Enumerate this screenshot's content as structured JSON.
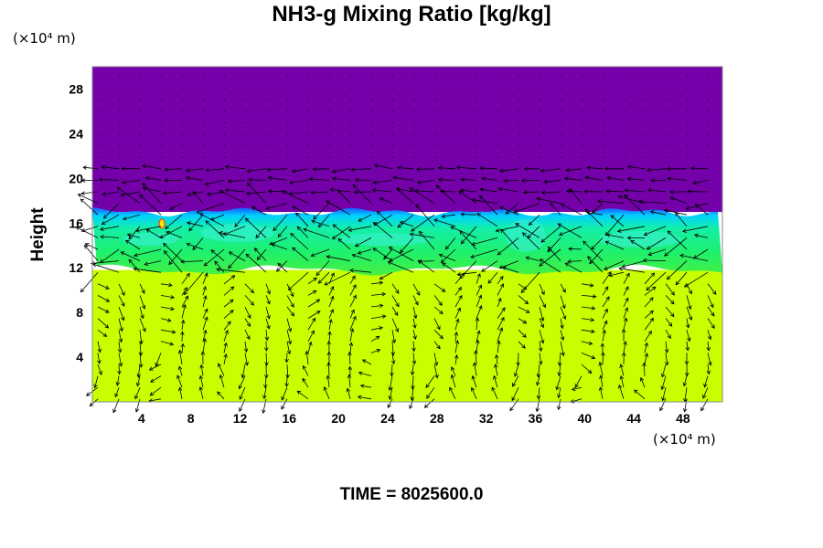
{
  "chart_data": {
    "type": "heatmap",
    "title": "NH3-g Mixing Ratio [kg/kg]",
    "ylabel": "Height",
    "x_unit": "(×10⁴ m)",
    "y_unit": "(×10⁴ m)",
    "time_label": "TIME = 8025600.0",
    "xlim": [
      0,
      51.2
    ],
    "ylim": [
      0,
      30
    ],
    "x_ticks": [
      4,
      8,
      12,
      16,
      20,
      24,
      28,
      32,
      36,
      40,
      44,
      48
    ],
    "y_ticks": [
      4,
      8,
      12,
      16,
      20,
      24,
      28
    ],
    "layers": [
      {
        "region": "upper",
        "y_range": [
          17,
          30
        ],
        "color": "#7300a8"
      },
      {
        "region": "cloud",
        "y_range": [
          11.8,
          17
        ],
        "color": "#1ef06e"
      },
      {
        "region": "lower",
        "y_range": [
          0,
          11.8
        ],
        "color": "#c8ff00"
      }
    ],
    "vector_field": "wind vectors overlaid"
  }
}
